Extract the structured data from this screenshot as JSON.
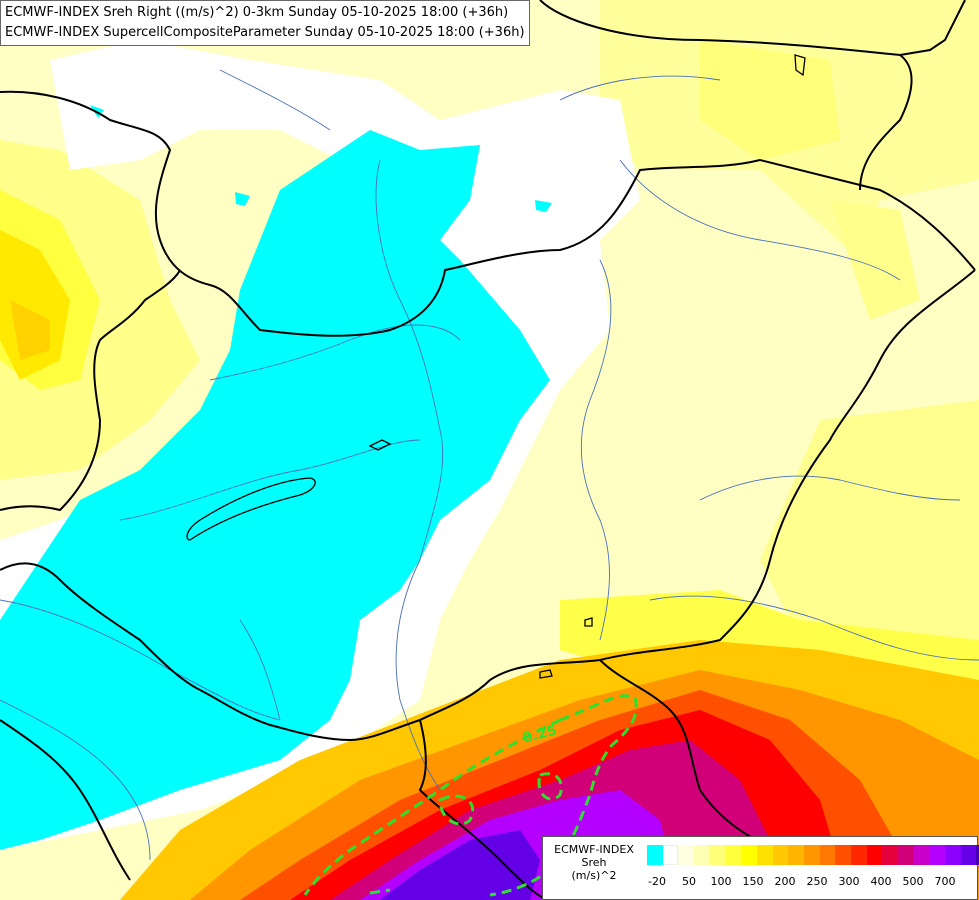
{
  "title": {
    "line1": "ECMWF-INDEX Sreh Right ((m/s)^2) 0-3km Sunday 05-10-2025 18:00 (+36h)",
    "line2": "ECMWF-INDEX SupercellCompositeParameter Sunday 05-10-2025 18:00 (+36h)"
  },
  "contour_label": "0.25",
  "legend": {
    "title_line1": "ECMWF-INDEX",
    "title_line2": "Sreh",
    "title_line3": "(m/s)^2",
    "colors": [
      "#00ffff",
      "#ffffff",
      "#ffffe0",
      "#ffffb4",
      "#ffff78",
      "#ffff3c",
      "#ffff00",
      "#ffe100",
      "#ffc800",
      "#ffb400",
      "#ff9600",
      "#ff7800",
      "#ff5000",
      "#ff2800",
      "#ff0000",
      "#e6003c",
      "#d20078",
      "#c800c8",
      "#b400ff",
      "#8c00ff",
      "#6400e6",
      "#4600b4",
      "#2d008c",
      "#14006e"
    ],
    "ticks": [
      "-20",
      "50",
      "100",
      "150",
      "200",
      "250",
      "300",
      "400",
      "500",
      "700"
    ]
  }
}
